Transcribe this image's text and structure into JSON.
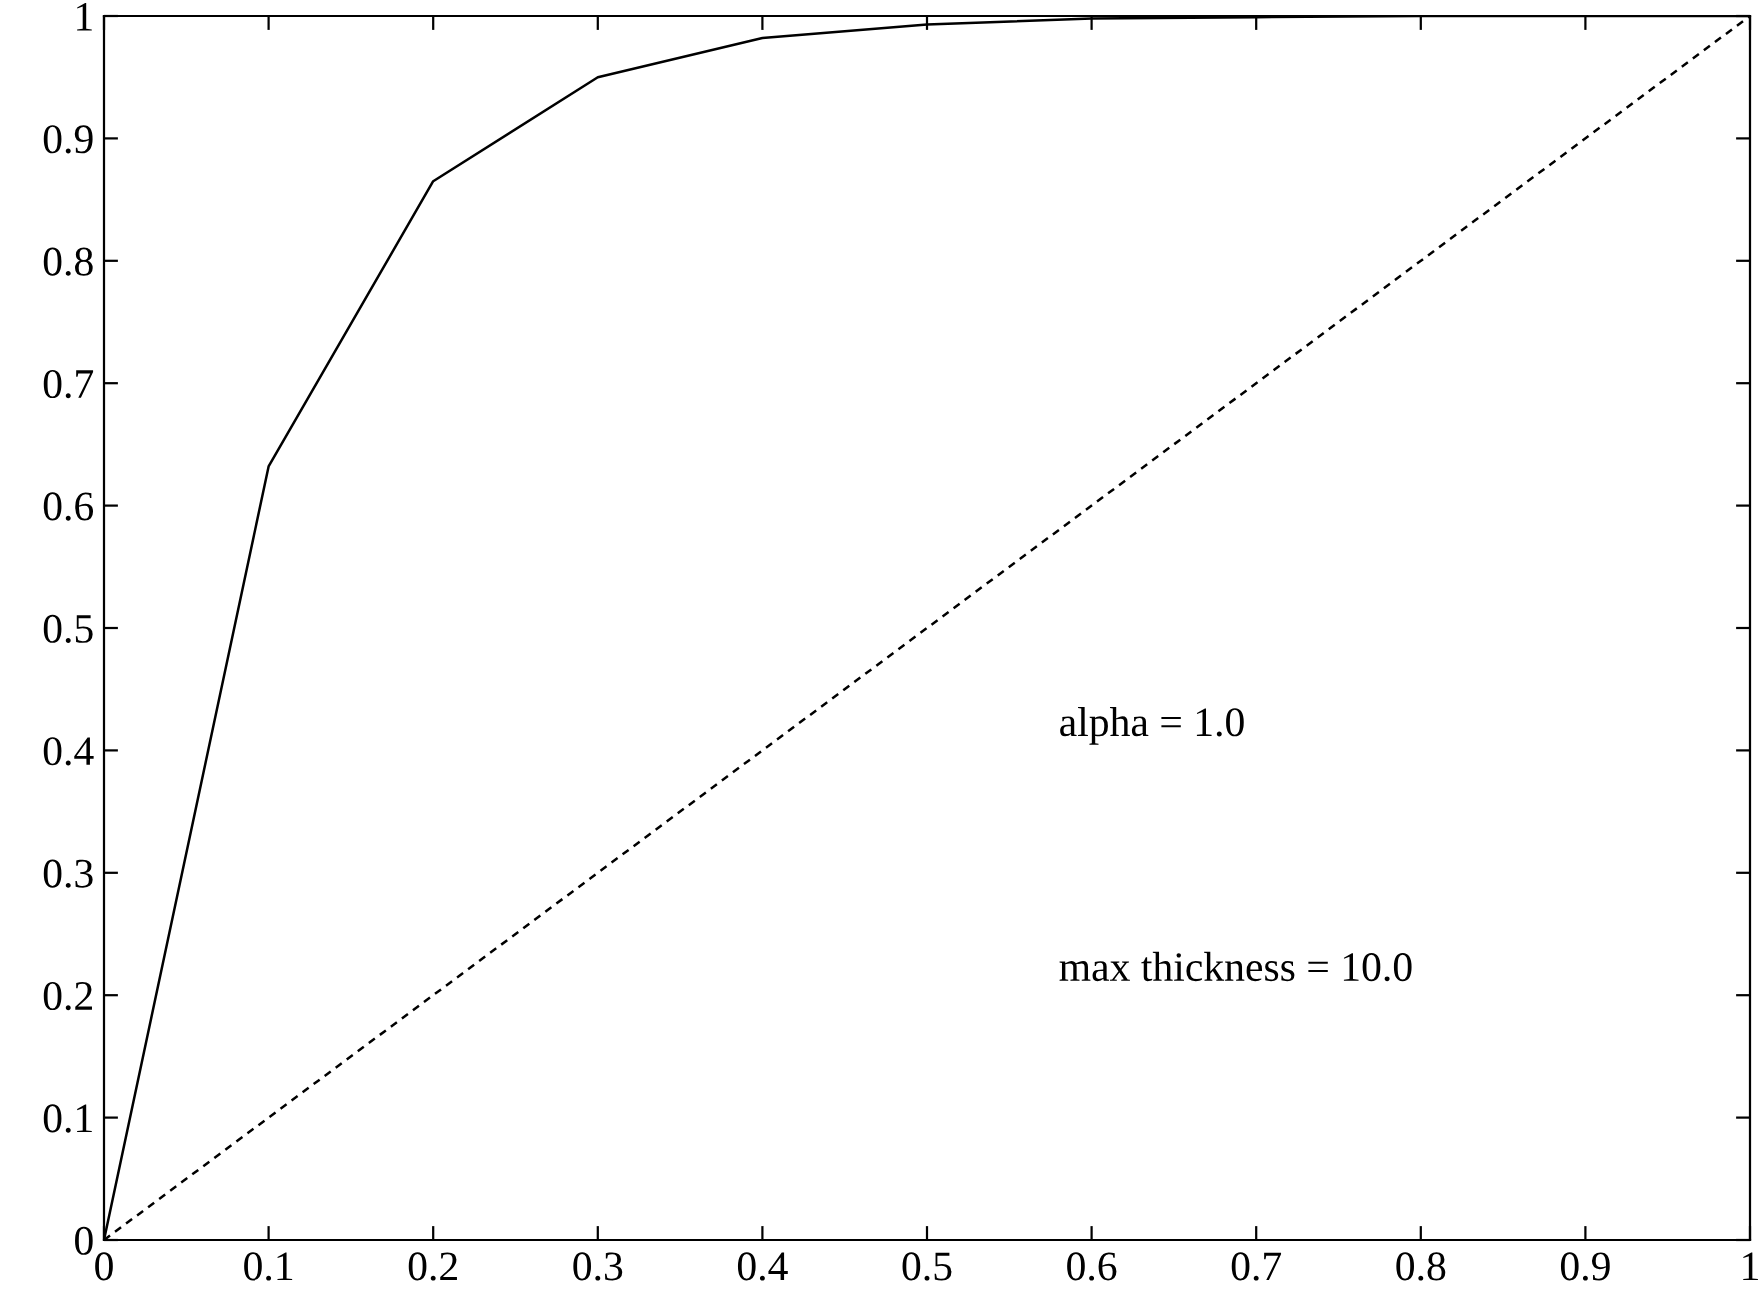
{
  "chart_data": {
    "type": "line",
    "xlim": [
      0,
      1
    ],
    "ylim": [
      0,
      1
    ],
    "xticks": [
      0,
      0.1,
      0.2,
      0.3,
      0.4,
      0.5,
      0.6,
      0.7,
      0.8,
      0.9,
      1
    ],
    "yticks": [
      0,
      0.1,
      0.2,
      0.3,
      0.4,
      0.5,
      0.6,
      0.7,
      0.8,
      0.9,
      1
    ],
    "grid": false,
    "legend": false,
    "series": [
      {
        "color": "#000000",
        "line_style": "solid",
        "x": [
          0,
          0.1,
          0.2,
          0.3,
          0.4,
          0.5,
          0.6,
          0.7,
          0.8,
          0.9,
          1
        ],
        "values": [
          0,
          0.632,
          0.865,
          0.95,
          0.982,
          0.993,
          0.998,
          0.999,
          1,
          1,
          1
        ]
      },
      {
        "color": "#000000",
        "line_style": "dashed",
        "x": [
          0,
          1
        ],
        "values": [
          0,
          1
        ]
      }
    ],
    "annotations": [
      "alpha = 1.0",
      "max thickness = 10.0"
    ]
  }
}
